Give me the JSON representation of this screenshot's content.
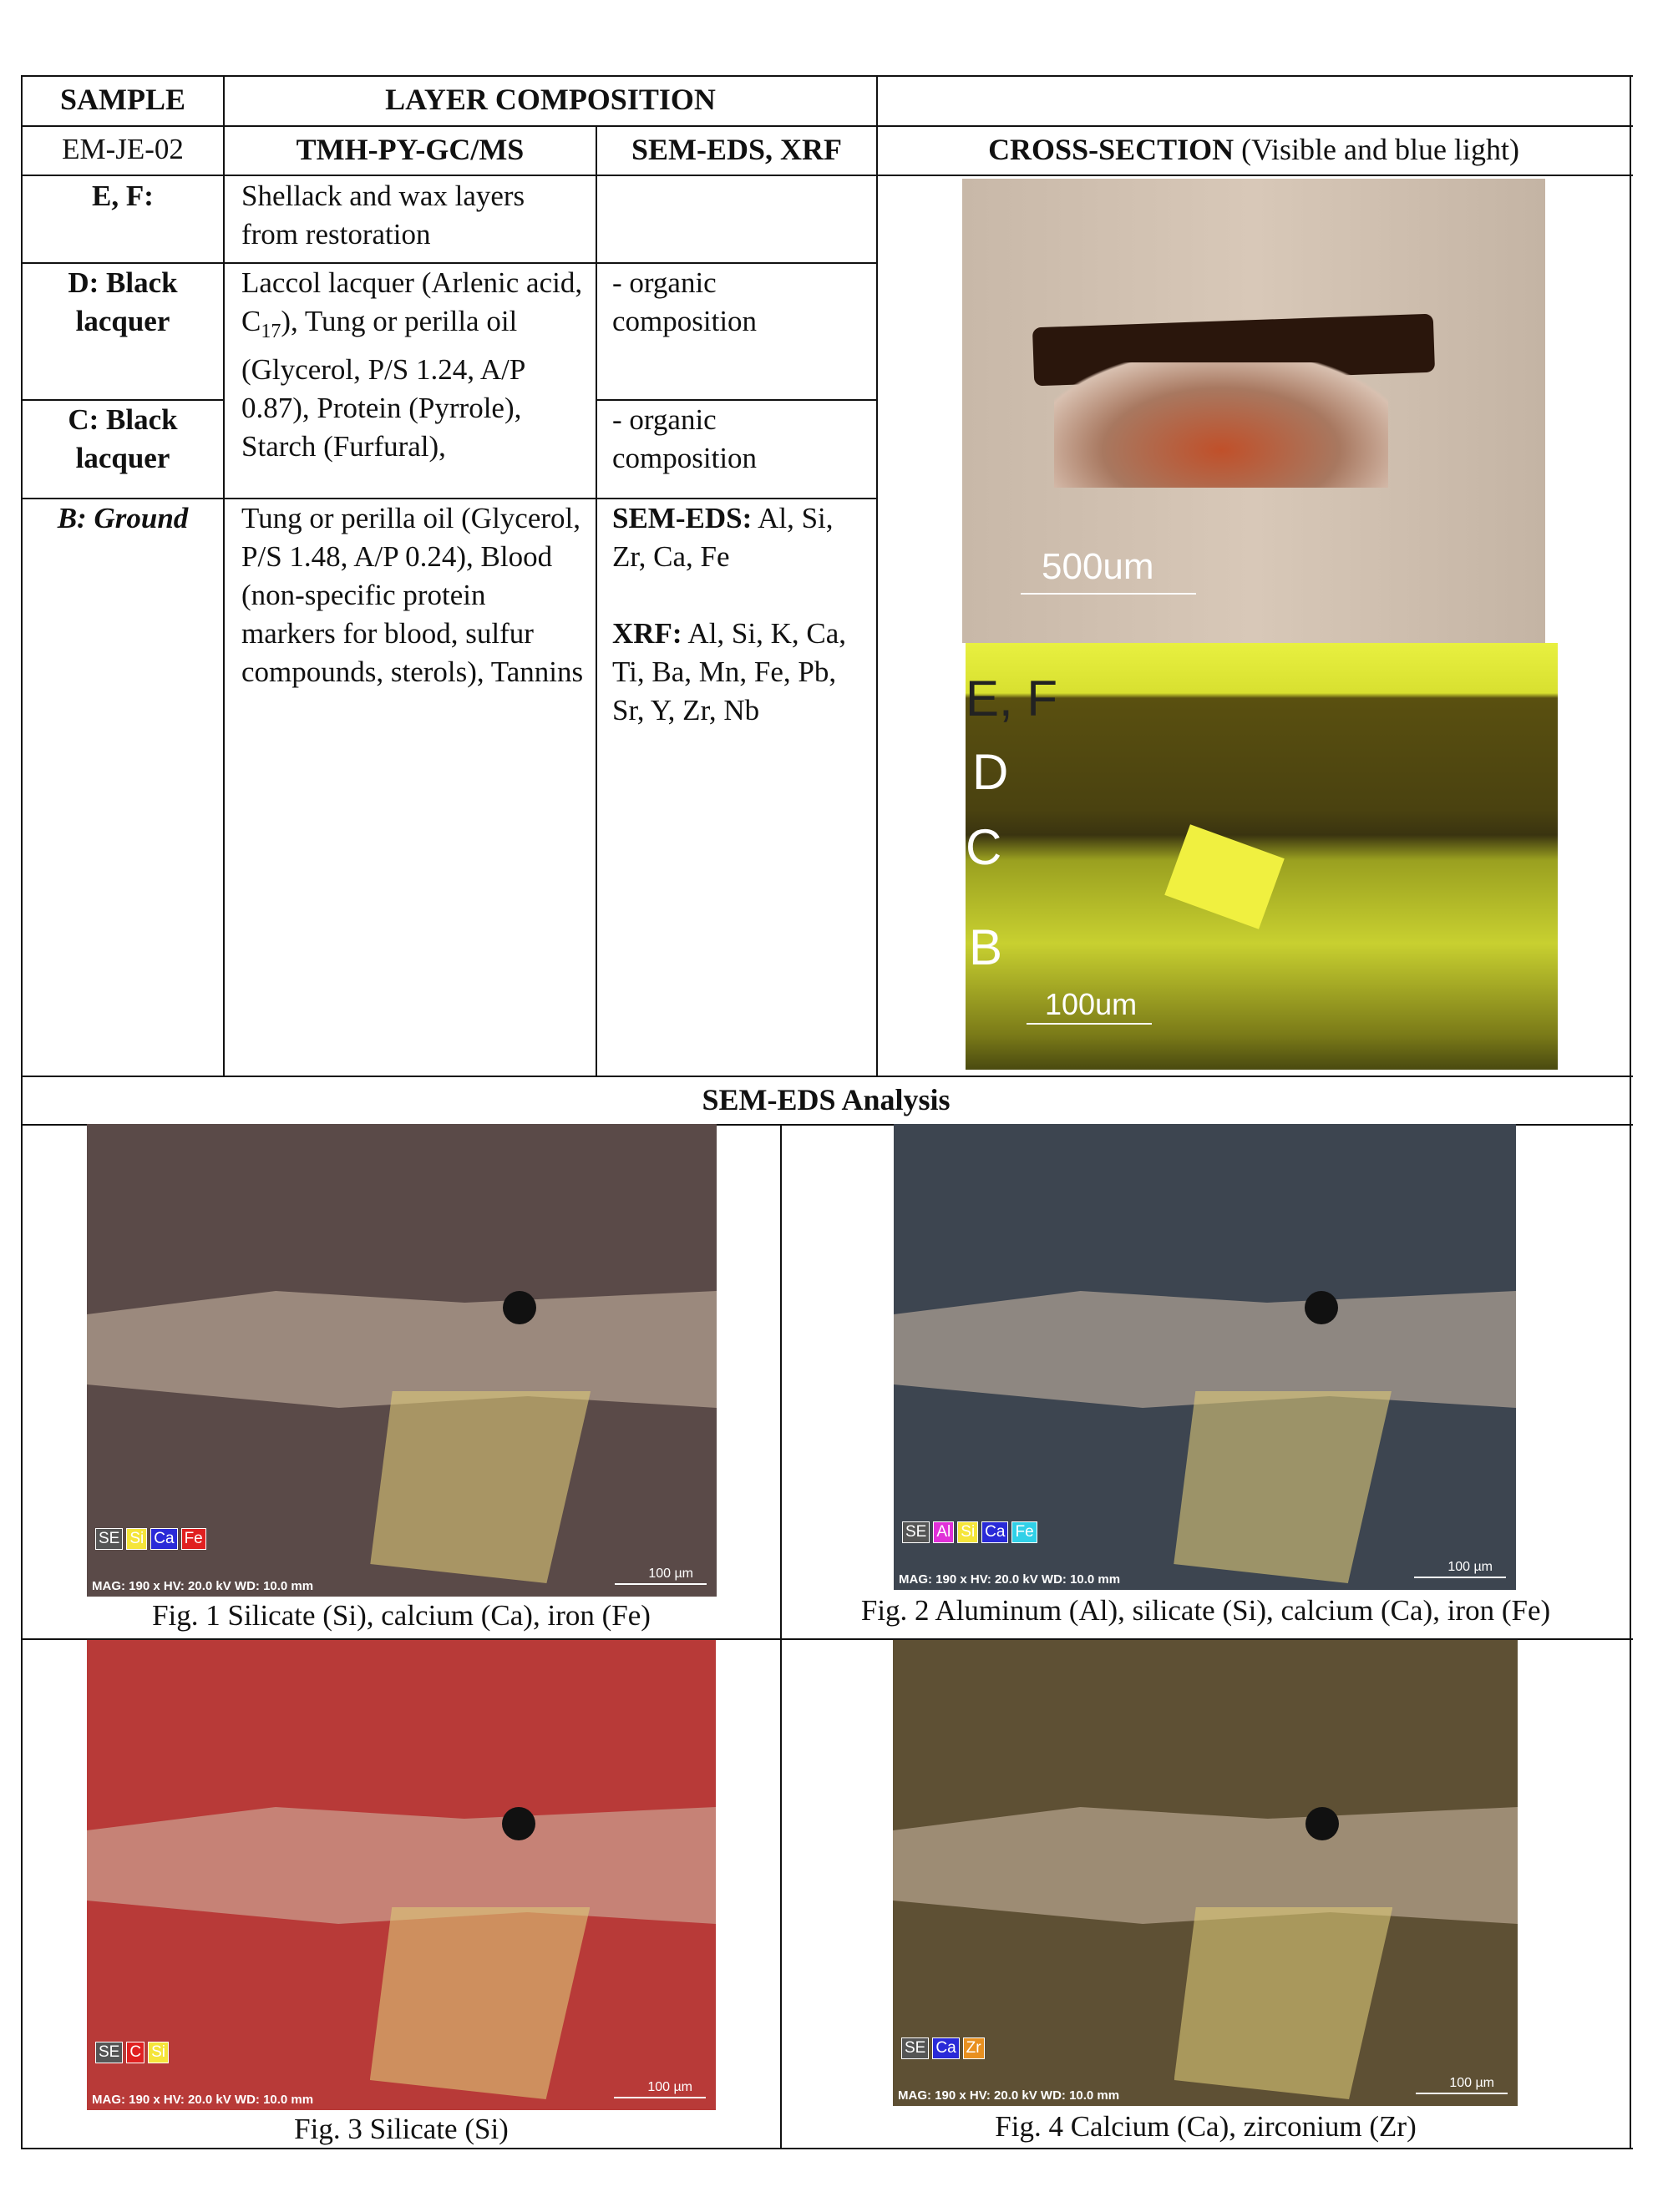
{
  "table": {
    "header": {
      "sample": "SAMPLE",
      "layer": "LAYER COMPOSITION"
    },
    "subheader": {
      "sample": "EM-JE-02",
      "gcms": "TMH-PY-GC/MS",
      "edx": "SEM-EDS, XRF",
      "section_bold": "CROSS-SECTION",
      "section_rest": "(Visible and blue light)"
    },
    "rows": [
      {
        "sample": "E, F:",
        "gcms": "Shellack and wax layers from restoration"
      },
      {
        "sample": "D: Black lacquer",
        "edx": "- organic composition"
      },
      {
        "sample": "C: Black lacquer",
        "edx": "- organic composition"
      },
      {
        "sample": "B: Ground",
        "gcms": "Tung or perilla oil (Glycerol, P/S 1.48, A/P 0.24), Blood (non-specific protein markers for blood, sulfur compounds, sterols), Tannins",
        "edx_label": "SEM-EDS:",
        "edx": "Al, Si, Zr, Ca, Fe",
        "xrf_label": "XRF:",
        "xrf": "Al, Si, K, Ca, Ti, Ba, Mn, Fe, Pb, Sr, Y, Zr, Nb"
      }
    ],
    "dc_gcms": {
      "before": "Laccol lacquer (Arlenic acid, C",
      "sub": "17",
      "after": "), Tung or perilla oil (Glycerol, P/S 1.24, A/P 0.87), Protein (Pyrrole), Starch (Furfural),"
    },
    "cross_section": {
      "visible_scale": "500um",
      "layers": [
        "E, F",
        "D",
        "C",
        "B"
      ],
      "blue_scale": "100um"
    }
  },
  "sem": {
    "title": "SEM-EDS Analysis",
    "figures": [
      {
        "caption": "Fig. 1 Silicate (Si), calcium (Ca), iron (Fe)",
        "bg": "#5a4a48",
        "elements": [
          {
            "label": "SE",
            "color": "#ffffff"
          },
          {
            "label": "Si",
            "color": "#f5e53a"
          },
          {
            "label": "Ca",
            "color": "#2a2ad8"
          },
          {
            "label": "Fe",
            "color": "#e02020"
          }
        ],
        "scale": "100 µm",
        "meta": "MAG: 190 x  HV: 20.0 kV  WD: 10.0 mm"
      },
      {
        "caption": "Fig. 2 Aluminum (Al), silicate (Si), calcium (Ca), iron (Fe)",
        "bg": "#3d4550",
        "elements": [
          {
            "label": "SE",
            "color": "#ffffff"
          },
          {
            "label": "Al",
            "color": "#e030d8"
          },
          {
            "label": "Si",
            "color": "#f5e53a"
          },
          {
            "label": "Ca",
            "color": "#2a2ad8"
          },
          {
            "label": "Fe",
            "color": "#30d0e8"
          }
        ],
        "scale": "100 µm",
        "meta": "MAG: 190 x  HV: 20.0 kV  WD: 10.0 mm"
      },
      {
        "caption": "Fig. 3 Silicate (Si)",
        "bg": "#b83a38",
        "elements": [
          {
            "label": "SE",
            "color": "#ffffff"
          },
          {
            "label": "C",
            "color": "#e02020"
          },
          {
            "label": "Si",
            "color": "#f5e53a"
          }
        ],
        "scale": "100 µm",
        "meta": "MAG: 190 x  HV: 20.0 kV  WD: 10.0 mm"
      },
      {
        "caption": "Fig. 4 Calcium (Ca), zirconium (Zr)",
        "bg": "#5e5034",
        "elements": [
          {
            "label": "SE",
            "color": "#ffffff"
          },
          {
            "label": "Ca",
            "color": "#2a2ad8"
          },
          {
            "label": "Zr",
            "color": "#e89020"
          }
        ],
        "scale": "100 µm",
        "meta": "MAG: 190 x  HV: 20.0 kV  WD: 10.0 mm"
      }
    ]
  }
}
